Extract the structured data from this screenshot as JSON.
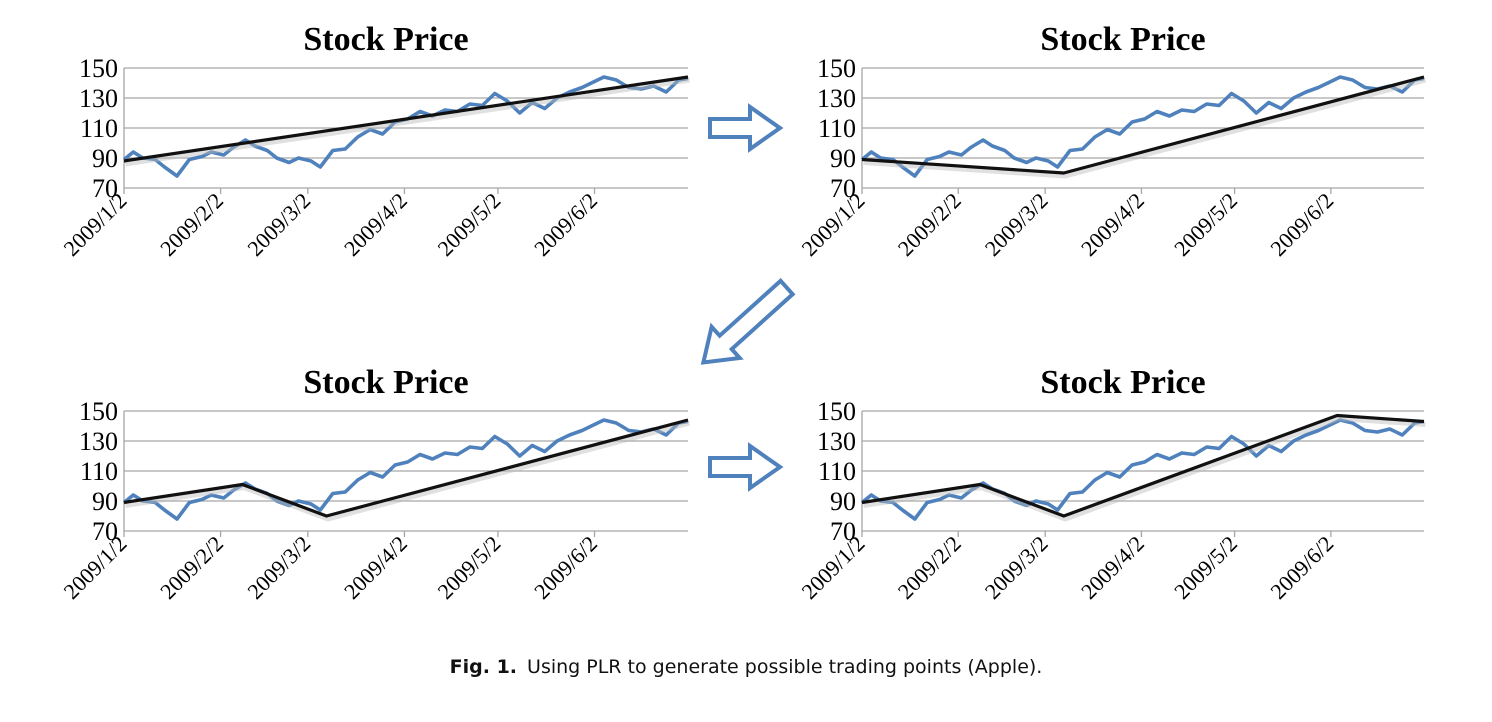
{
  "figure": {
    "caption_label": "Fig. 1.",
    "caption_text": "Using PLR to generate possible trading points (Apple).",
    "colors": {
      "price": "#4f81bd",
      "plr": "#111111",
      "grid": "#a6a6a6",
      "arrow": "#4f81bd"
    },
    "arrows": [
      {
        "name": "arrow-right-top",
        "icon": "right-arrow-icon"
      },
      {
        "name": "arrow-down-left",
        "icon": "down-left-arrow-icon"
      },
      {
        "name": "arrow-right-bottom",
        "icon": "right-arrow-icon"
      }
    ]
  },
  "chart_data": [
    {
      "type": "line",
      "title": "Stock Price",
      "ylim": [
        70,
        150
      ],
      "yticks": [
        150,
        130,
        110,
        90,
        70
      ],
      "x_range": [
        "2009/1/2",
        "2009/7/2"
      ],
      "xticks": [
        "2009/1/2",
        "2009/2/2",
        "2009/3/2",
        "2009/4/2",
        "2009/5/2",
        "2009/6/2"
      ],
      "grid": true,
      "series": [
        {
          "role": "price",
          "x": [
            "2009/1/2",
            "2009/1/5",
            "2009/1/8",
            "2009/1/12",
            "2009/1/15",
            "2009/1/19",
            "2009/1/23",
            "2009/1/27",
            "2009/1/30",
            "2009/2/3",
            "2009/2/6",
            "2009/2/10",
            "2009/2/13",
            "2009/2/17",
            "2009/2/20",
            "2009/2/24",
            "2009/2/27",
            "2009/3/3",
            "2009/3/6",
            "2009/3/10",
            "2009/3/14",
            "2009/3/18",
            "2009/3/22",
            "2009/3/26",
            "2009/3/30",
            "2009/4/3",
            "2009/4/7",
            "2009/4/11",
            "2009/4/15",
            "2009/4/19",
            "2009/4/23",
            "2009/4/27",
            "2009/5/1",
            "2009/5/5",
            "2009/5/9",
            "2009/5/13",
            "2009/5/17",
            "2009/5/21",
            "2009/5/25",
            "2009/5/29",
            "2009/6/2",
            "2009/6/5",
            "2009/6/9",
            "2009/6/13",
            "2009/6/17",
            "2009/6/21",
            "2009/6/25",
            "2009/6/29",
            "2009/7/2"
          ],
          "values": [
            89,
            94,
            90,
            89,
            84,
            78,
            89,
            91,
            94,
            92,
            97,
            102,
            98,
            95,
            90,
            87,
            90,
            88,
            84,
            95,
            96,
            104,
            109,
            106,
            114,
            116,
            121,
            118,
            122,
            121,
            126,
            125,
            133,
            128,
            120,
            127,
            123,
            130,
            134,
            137,
            141,
            144,
            142,
            137,
            136,
            138,
            134,
            142,
            143
          ]
        },
        {
          "role": "plr",
          "x": [
            "2009/1/2",
            "2009/7/2"
          ],
          "values": [
            88,
            144
          ]
        }
      ]
    },
    {
      "type": "line",
      "title": "Stock Price",
      "ylim": [
        70,
        150
      ],
      "yticks": [
        150,
        130,
        110,
        90,
        70
      ],
      "x_range": [
        "2009/1/2",
        "2009/7/2"
      ],
      "xticks": [
        "2009/1/2",
        "2009/2/2",
        "2009/3/2",
        "2009/4/2",
        "2009/5/2",
        "2009/6/2"
      ],
      "grid": true,
      "series": [
        {
          "role": "price",
          "x": [
            "2009/1/2",
            "2009/1/5",
            "2009/1/8",
            "2009/1/12",
            "2009/1/15",
            "2009/1/19",
            "2009/1/23",
            "2009/1/27",
            "2009/1/30",
            "2009/2/3",
            "2009/2/6",
            "2009/2/10",
            "2009/2/13",
            "2009/2/17",
            "2009/2/20",
            "2009/2/24",
            "2009/2/27",
            "2009/3/3",
            "2009/3/6",
            "2009/3/10",
            "2009/3/14",
            "2009/3/18",
            "2009/3/22",
            "2009/3/26",
            "2009/3/30",
            "2009/4/3",
            "2009/4/7",
            "2009/4/11",
            "2009/4/15",
            "2009/4/19",
            "2009/4/23",
            "2009/4/27",
            "2009/5/1",
            "2009/5/5",
            "2009/5/9",
            "2009/5/13",
            "2009/5/17",
            "2009/5/21",
            "2009/5/25",
            "2009/5/29",
            "2009/6/2",
            "2009/6/5",
            "2009/6/9",
            "2009/6/13",
            "2009/6/17",
            "2009/6/21",
            "2009/6/25",
            "2009/6/29",
            "2009/7/2"
          ],
          "values": [
            89,
            94,
            90,
            89,
            84,
            78,
            89,
            91,
            94,
            92,
            97,
            102,
            98,
            95,
            90,
            87,
            90,
            88,
            84,
            95,
            96,
            104,
            109,
            106,
            114,
            116,
            121,
            118,
            122,
            121,
            126,
            125,
            133,
            128,
            120,
            127,
            123,
            130,
            134,
            137,
            141,
            144,
            142,
            137,
            136,
            138,
            134,
            142,
            143
          ]
        },
        {
          "role": "plr",
          "x": [
            "2009/1/2",
            "2009/3/8",
            "2009/7/2"
          ],
          "values": [
            89,
            80,
            144
          ]
        }
      ]
    },
    {
      "type": "line",
      "title": "Stock Price",
      "ylim": [
        70,
        150
      ],
      "yticks": [
        150,
        130,
        110,
        90,
        70
      ],
      "x_range": [
        "2009/1/2",
        "2009/7/2"
      ],
      "xticks": [
        "2009/1/2",
        "2009/2/2",
        "2009/3/2",
        "2009/4/2",
        "2009/5/2",
        "2009/6/2"
      ],
      "grid": true,
      "series": [
        {
          "role": "price",
          "x": [
            "2009/1/2",
            "2009/1/5",
            "2009/1/8",
            "2009/1/12",
            "2009/1/15",
            "2009/1/19",
            "2009/1/23",
            "2009/1/27",
            "2009/1/30",
            "2009/2/3",
            "2009/2/6",
            "2009/2/10",
            "2009/2/13",
            "2009/2/17",
            "2009/2/20",
            "2009/2/24",
            "2009/2/27",
            "2009/3/3",
            "2009/3/6",
            "2009/3/10",
            "2009/3/14",
            "2009/3/18",
            "2009/3/22",
            "2009/3/26",
            "2009/3/30",
            "2009/4/3",
            "2009/4/7",
            "2009/4/11",
            "2009/4/15",
            "2009/4/19",
            "2009/4/23",
            "2009/4/27",
            "2009/5/1",
            "2009/5/5",
            "2009/5/9",
            "2009/5/13",
            "2009/5/17",
            "2009/5/21",
            "2009/5/25",
            "2009/5/29",
            "2009/6/2",
            "2009/6/5",
            "2009/6/9",
            "2009/6/13",
            "2009/6/17",
            "2009/6/21",
            "2009/6/25",
            "2009/6/29",
            "2009/7/2"
          ],
          "values": [
            89,
            94,
            90,
            89,
            84,
            78,
            89,
            91,
            94,
            92,
            97,
            102,
            98,
            95,
            90,
            87,
            90,
            88,
            84,
            95,
            96,
            104,
            109,
            106,
            114,
            116,
            121,
            118,
            122,
            121,
            126,
            125,
            133,
            128,
            120,
            127,
            123,
            130,
            134,
            137,
            141,
            144,
            142,
            137,
            136,
            138,
            134,
            142,
            143
          ]
        },
        {
          "role": "plr",
          "x": [
            "2009/1/2",
            "2009/2/9",
            "2009/3/8",
            "2009/7/2"
          ],
          "values": [
            89,
            101,
            80,
            144
          ]
        }
      ]
    },
    {
      "type": "line",
      "title": "Stock Price",
      "ylim": [
        70,
        150
      ],
      "yticks": [
        150,
        130,
        110,
        90,
        70
      ],
      "x_range": [
        "2009/1/2",
        "2009/7/2"
      ],
      "xticks": [
        "2009/1/2",
        "2009/2/2",
        "2009/3/2",
        "2009/4/2",
        "2009/5/2",
        "2009/6/2"
      ],
      "grid": true,
      "series": [
        {
          "role": "price",
          "x": [
            "2009/1/2",
            "2009/1/5",
            "2009/1/8",
            "2009/1/12",
            "2009/1/15",
            "2009/1/19",
            "2009/1/23",
            "2009/1/27",
            "2009/1/30",
            "2009/2/3",
            "2009/2/6",
            "2009/2/10",
            "2009/2/13",
            "2009/2/17",
            "2009/2/20",
            "2009/2/24",
            "2009/2/27",
            "2009/3/3",
            "2009/3/6",
            "2009/3/10",
            "2009/3/14",
            "2009/3/18",
            "2009/3/22",
            "2009/3/26",
            "2009/3/30",
            "2009/4/3",
            "2009/4/7",
            "2009/4/11",
            "2009/4/15",
            "2009/4/19",
            "2009/4/23",
            "2009/4/27",
            "2009/5/1",
            "2009/5/5",
            "2009/5/9",
            "2009/5/13",
            "2009/5/17",
            "2009/5/21",
            "2009/5/25",
            "2009/5/29",
            "2009/6/2",
            "2009/6/5",
            "2009/6/9",
            "2009/6/13",
            "2009/6/17",
            "2009/6/21",
            "2009/6/25",
            "2009/6/29",
            "2009/7/2"
          ],
          "values": [
            89,
            94,
            90,
            89,
            84,
            78,
            89,
            91,
            94,
            92,
            97,
            102,
            98,
            95,
            90,
            87,
            90,
            88,
            84,
            95,
            96,
            104,
            109,
            106,
            114,
            116,
            121,
            118,
            122,
            121,
            126,
            125,
            133,
            128,
            120,
            127,
            123,
            130,
            134,
            137,
            141,
            144,
            142,
            137,
            136,
            138,
            134,
            142,
            143
          ]
        },
        {
          "role": "plr",
          "x": [
            "2009/1/2",
            "2009/2/9",
            "2009/3/8",
            "2009/6/4",
            "2009/7/2"
          ],
          "values": [
            89,
            101,
            80,
            147,
            143
          ]
        }
      ]
    }
  ]
}
